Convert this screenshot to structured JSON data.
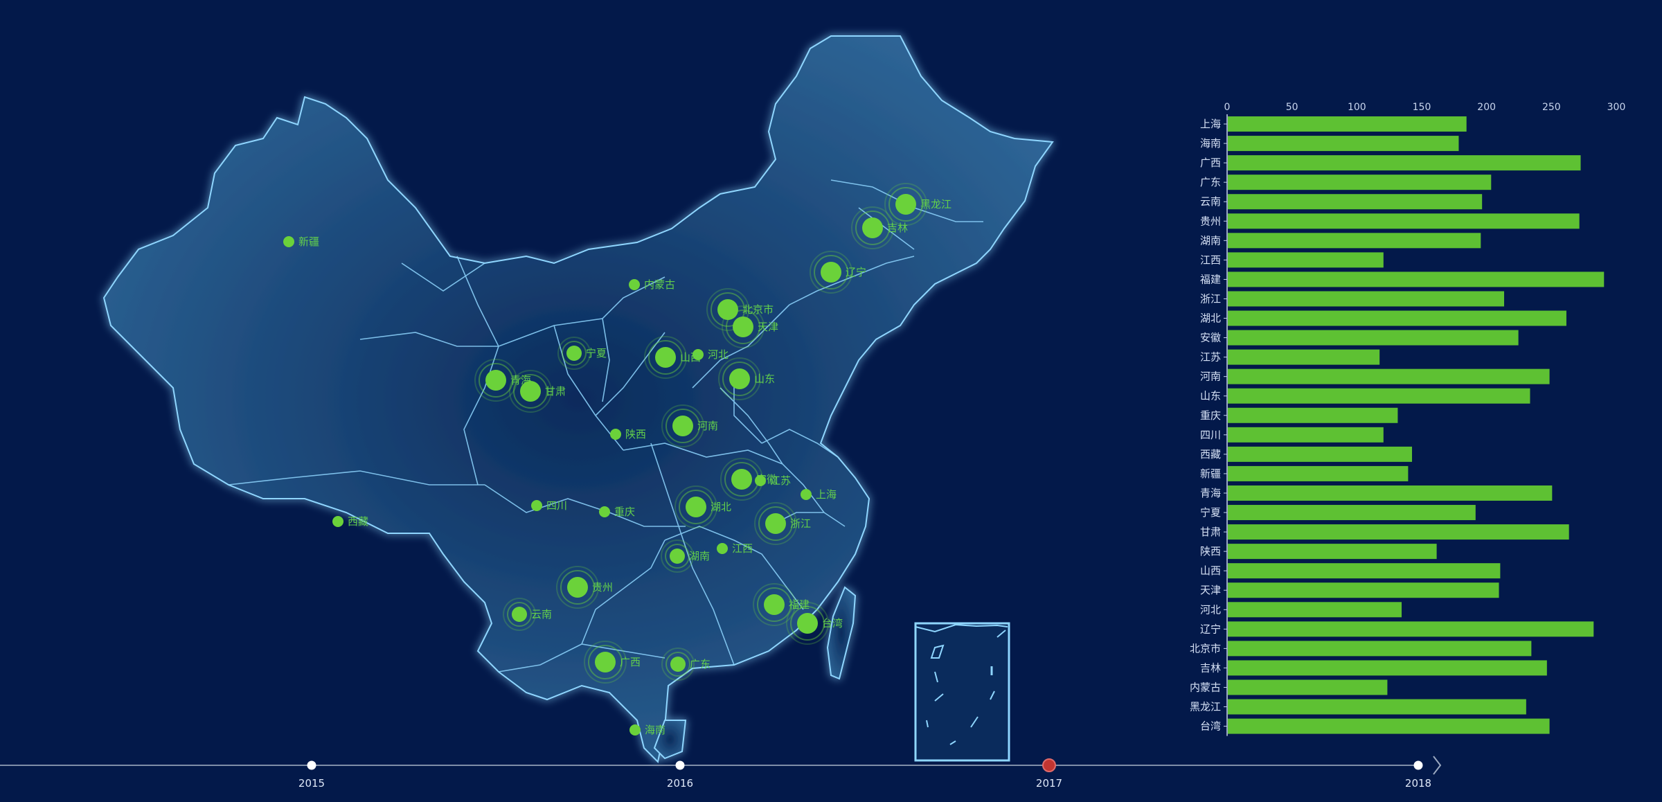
{
  "colors": {
    "background": "#03194a",
    "land_fill": "#1e4e7c",
    "land_stroke": "#8fd6ff",
    "point_color": "#6bd23a",
    "bar_color": "#5ec133",
    "timeline_active": "#c23531",
    "timeline_dot": "#ffffff"
  },
  "map": {
    "points": [
      {
        "name": "新疆",
        "size": "small"
      },
      {
        "name": "内蒙古",
        "size": "small"
      },
      {
        "name": "黑龙江",
        "size": "large"
      },
      {
        "name": "吉林",
        "size": "large"
      },
      {
        "name": "辽宁",
        "size": "large"
      },
      {
        "name": "北京市",
        "size": "large"
      },
      {
        "name": "天津",
        "size": "large"
      },
      {
        "name": "河北",
        "size": "small"
      },
      {
        "name": "山西",
        "size": "large"
      },
      {
        "name": "山东",
        "size": "large"
      },
      {
        "name": "宁夏",
        "size": "medium"
      },
      {
        "name": "青海",
        "size": "large"
      },
      {
        "name": "甘肃",
        "size": "large"
      },
      {
        "name": "陕西",
        "size": "small"
      },
      {
        "name": "河南",
        "size": "large"
      },
      {
        "name": "安徽",
        "size": "large"
      },
      {
        "name": "江苏",
        "size": "small"
      },
      {
        "name": "上海",
        "size": "small"
      },
      {
        "name": "西藏",
        "size": "small"
      },
      {
        "name": "四川",
        "size": "small"
      },
      {
        "name": "重庆",
        "size": "small"
      },
      {
        "name": "湖北",
        "size": "large"
      },
      {
        "name": "浙江",
        "size": "large"
      },
      {
        "name": "湖南",
        "size": "medium"
      },
      {
        "name": "江西",
        "size": "small"
      },
      {
        "name": "贵州",
        "size": "large"
      },
      {
        "name": "云南",
        "size": "medium"
      },
      {
        "name": "福建",
        "size": "large"
      },
      {
        "name": "台湾",
        "size": "large"
      },
      {
        "name": "广西",
        "size": "large"
      },
      {
        "name": "广东",
        "size": "medium"
      },
      {
        "name": "海南",
        "size": "small"
      }
    ]
  },
  "chart_data": {
    "type": "bar",
    "orientation": "horizontal",
    "x_ticks": [
      "0",
      "50",
      "100",
      "150",
      "200",
      "250",
      "300"
    ],
    "xlim": [
      0,
      300
    ],
    "categories": [
      "上海",
      "海南",
      "广西",
      "广东",
      "云南",
      "贵州",
      "湖南",
      "江西",
      "福建",
      "浙江",
      "湖北",
      "安徽",
      "江苏",
      "河南",
      "山东",
      "重庆",
      "四川",
      "西藏",
      "新疆",
      "青海",
      "宁夏",
      "甘肃",
      "陕西",
      "山西",
      "天津",
      "河北",
      "辽宁",
      "北京市",
      "吉林",
      "内蒙古",
      "黑龙江",
      "台湾"
    ],
    "values": [
      184,
      178,
      272,
      203,
      196,
      271,
      195,
      120,
      290,
      213,
      261,
      224,
      117,
      248,
      233,
      131,
      120,
      142,
      139,
      250,
      191,
      263,
      161,
      210,
      209,
      134,
      282,
      234,
      246,
      123,
      230,
      248
    ]
  },
  "timeline": {
    "years": [
      "2015",
      "2016",
      "2017",
      "2018"
    ],
    "active_index": 2,
    "next_icon": "chevron-right-icon"
  }
}
